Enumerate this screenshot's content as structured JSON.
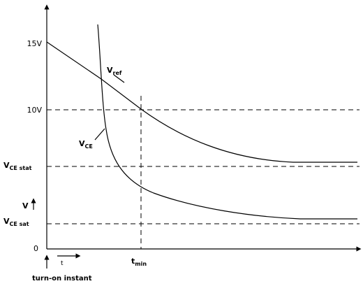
{
  "y_labels": {
    "v15": "15V",
    "v10": "10V",
    "zero": "0",
    "vce_stat": {
      "main": "V",
      "sub": "CE stat"
    },
    "v_axis": "V",
    "vce_sat": {
      "main": "V",
      "sub": "CE sat"
    }
  },
  "curves": {
    "vref": {
      "main": "V",
      "sub": "ref"
    },
    "vce": {
      "main": "V",
      "sub": "CE"
    }
  },
  "x_labels": {
    "t": "t",
    "tmin": {
      "main": "t",
      "sub": "min"
    },
    "turn_on": "turn-on instant"
  }
}
